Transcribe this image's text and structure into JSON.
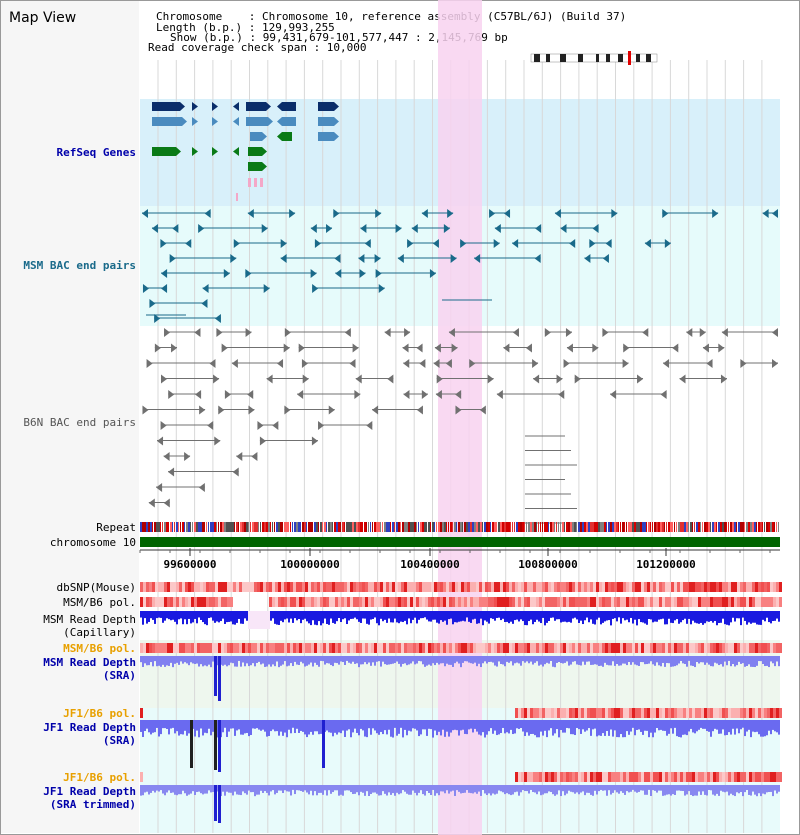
{
  "panel_title": "Map View",
  "header": {
    "chromosome_line": "Chromosome    : Chromosome 10, reference assembly (C57BL/6J) (Build 37)",
    "length_line": "Length (b.p.) : 129,993,255",
    "show_line": "Show (b.p.) : 99,431,679-101,577,447 : 2,145,769 bp",
    "coverage_line": "Read coverage check span : 10,000"
  },
  "tracks": {
    "refseq": "RefSeq Genes",
    "msm_bac": "MSM BAC end pairs",
    "b6n_bac": "B6N BAC end pairs",
    "repeat": "Repeat",
    "chromosome": "chromosome 10",
    "dbsnp": "dbSNP(Mouse)",
    "msm_b6_pol": "MSM/B6 pol.",
    "msm_depth_cap_1": "MSM Read Depth",
    "msm_depth_cap_2": "(Capillary)",
    "msm_b6_pol_sra": "MSM/B6 pol.",
    "msm_depth_sra_1": "MSM Read Depth",
    "msm_depth_sra_2": "(SRA)",
    "jf1_b6_pol": "JF1/B6 pol.",
    "jf1_depth_1": "JF1 Read Depth",
    "jf1_depth_2": "(SRA)",
    "jf1_b6_pol_trim": "JF1/B6 pol.",
    "jf1_trim_1": "JF1 Read Depth",
    "jf1_trim_2": "(SRA trimmed)"
  },
  "axis": {
    "ticks": [
      "99600000",
      "100000000",
      "100400000",
      "100800000",
      "101200000"
    ]
  },
  "colors": {
    "refseq_bg": "#d8f0fa",
    "msm_bg": "#e6fbfb",
    "highlight": "#f8d2f0",
    "chromosome": "#006400",
    "refseq_navy": "#0a2d6a",
    "refseq_blue": "#4a8bbf",
    "refseq_green": "#0a7a16",
    "msm_pair": "#1a6a8a",
    "b6n_pair": "#707070",
    "label_blue": "#0000aa",
    "label_orange": "#e8a000"
  }
}
